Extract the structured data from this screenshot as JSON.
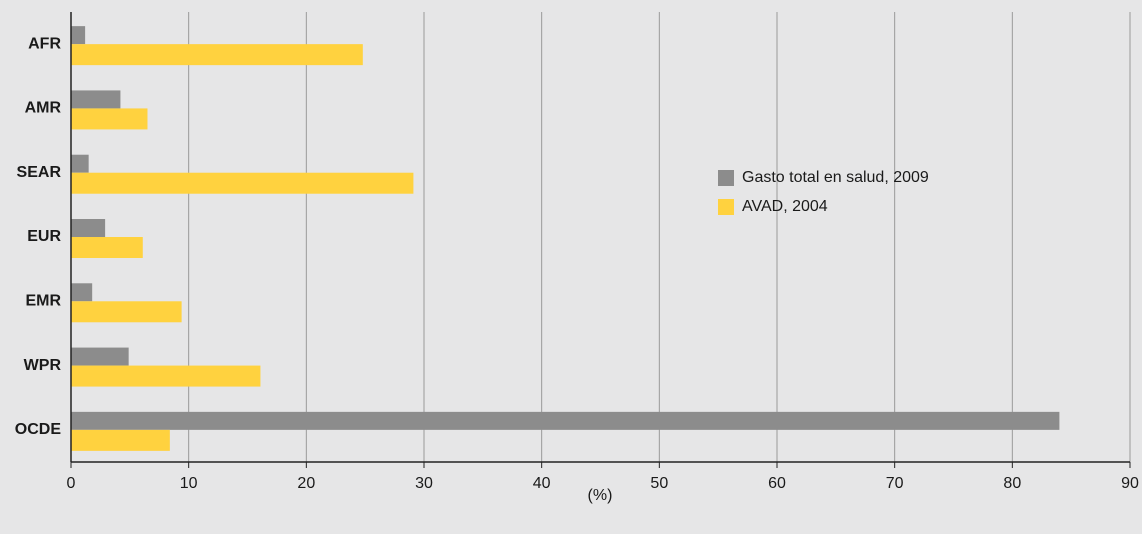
{
  "chart_data": {
    "type": "barh",
    "categories": [
      "AFR",
      "AMR",
      "SEAR",
      "EUR",
      "EMR",
      "WPR",
      "OCDE"
    ],
    "series": [
      {
        "name": "Gasto total en salud, 2009",
        "color": "#8c8c8c",
        "values": [
          1.2,
          4.2,
          1.5,
          2.9,
          1.8,
          4.9,
          84
        ]
      },
      {
        "name": "AVAD, 2004",
        "color": "#ffd23f",
        "values": [
          24.8,
          6.5,
          29.1,
          6.1,
          9.4,
          16.1,
          8.4
        ]
      }
    ],
    "xlabel": "(%)",
    "xlim": [
      0,
      90
    ],
    "xticks": [
      0,
      10,
      20,
      30,
      40,
      50,
      60,
      70,
      80,
      90
    ],
    "grid": true,
    "legend": "center-right"
  }
}
